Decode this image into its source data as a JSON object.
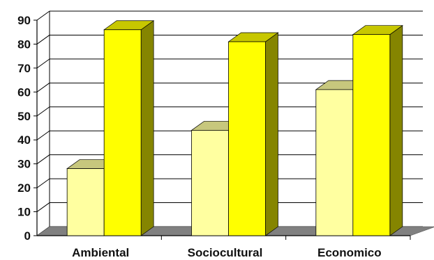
{
  "chart_data": {
    "type": "bar",
    "categories": [
      "Ambiental",
      "Sociocultural",
      "Economico"
    ],
    "series": [
      {
        "values": [
          28,
          44,
          61
        ],
        "color": "#ffffa0"
      },
      {
        "values": [
          86,
          81,
          84
        ],
        "color": "#ffff00"
      }
    ],
    "ylim": [
      0,
      90
    ],
    "yticks": [
      0,
      10,
      20,
      30,
      40,
      50,
      60,
      70,
      80,
      90
    ],
    "grid": true,
    "legend": "none",
    "style": "3d-column",
    "colors": {
      "floor": "#808080",
      "gridline": "#000000",
      "bar_edge": "#000000"
    }
  }
}
